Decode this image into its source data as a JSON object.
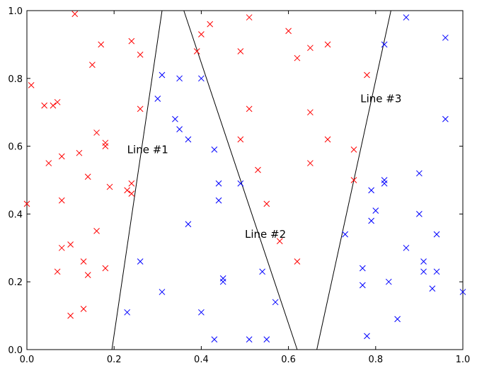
{
  "chart_data": {
    "type": "scatter",
    "title": "",
    "xlabel": "",
    "ylabel": "",
    "xlim": [
      0,
      1
    ],
    "ylim": [
      0,
      1
    ],
    "xticks": [
      "0.0",
      "0.2",
      "0.4",
      "0.6",
      "0.8",
      "1.0"
    ],
    "yticks": [
      "0.0",
      "0.2",
      "0.4",
      "0.6",
      "0.8",
      "1.0"
    ],
    "grid": false,
    "series": [
      {
        "color": "#ff0000",
        "marker": "x",
        "points": [
          [
            0.0,
            0.43
          ],
          [
            0.01,
            0.78
          ],
          [
            0.04,
            0.72
          ],
          [
            0.05,
            0.55
          ],
          [
            0.06,
            0.72
          ],
          [
            0.07,
            0.73
          ],
          [
            0.08,
            0.57
          ],
          [
            0.08,
            0.44
          ],
          [
            0.08,
            0.3
          ],
          [
            0.07,
            0.23
          ],
          [
            0.1,
            0.1
          ],
          [
            0.1,
            0.31
          ],
          [
            0.11,
            0.99
          ],
          [
            0.12,
            0.58
          ],
          [
            0.13,
            0.26
          ],
          [
            0.13,
            0.12
          ],
          [
            0.14,
            0.22
          ],
          [
            0.14,
            0.51
          ],
          [
            0.15,
            0.84
          ],
          [
            0.16,
            0.64
          ],
          [
            0.17,
            0.9
          ],
          [
            0.16,
            0.35
          ],
          [
            0.18,
            0.24
          ],
          [
            0.18,
            0.61
          ],
          [
            0.18,
            0.6
          ],
          [
            0.19,
            0.48
          ],
          [
            0.23,
            0.47
          ],
          [
            0.24,
            0.49
          ],
          [
            0.24,
            0.46
          ],
          [
            0.24,
            0.91
          ],
          [
            0.26,
            0.87
          ],
          [
            0.26,
            0.71
          ],
          [
            0.39,
            0.88
          ],
          [
            0.4,
            0.93
          ],
          [
            0.42,
            0.96
          ],
          [
            0.49,
            0.88
          ],
          [
            0.49,
            0.62
          ],
          [
            0.51,
            0.98
          ],
          [
            0.51,
            0.71
          ],
          [
            0.53,
            0.53
          ],
          [
            0.55,
            0.43
          ],
          [
            0.58,
            0.32
          ],
          [
            0.6,
            0.94
          ],
          [
            0.62,
            0.26
          ],
          [
            0.62,
            0.86
          ],
          [
            0.65,
            0.89
          ],
          [
            0.65,
            0.7
          ],
          [
            0.65,
            0.55
          ],
          [
            0.69,
            0.62
          ],
          [
            0.69,
            0.9
          ],
          [
            0.75,
            0.59
          ],
          [
            0.75,
            0.5
          ],
          [
            0.78,
            0.81
          ]
        ]
      },
      {
        "color": "#0000ff",
        "marker": "x",
        "points": [
          [
            0.23,
            0.11
          ],
          [
            0.26,
            0.26
          ],
          [
            0.3,
            0.74
          ],
          [
            0.31,
            0.81
          ],
          [
            0.31,
            0.17
          ],
          [
            0.34,
            0.68
          ],
          [
            0.35,
            0.8
          ],
          [
            0.35,
            0.65
          ],
          [
            0.37,
            0.62
          ],
          [
            0.37,
            0.37
          ],
          [
            0.4,
            0.8
          ],
          [
            0.4,
            0.11
          ],
          [
            0.43,
            0.59
          ],
          [
            0.43,
            0.03
          ],
          [
            0.44,
            0.49
          ],
          [
            0.44,
            0.44
          ],
          [
            0.45,
            0.21
          ],
          [
            0.45,
            0.2
          ],
          [
            0.49,
            0.49
          ],
          [
            0.51,
            0.03
          ],
          [
            0.54,
            0.23
          ],
          [
            0.55,
            0.03
          ],
          [
            0.57,
            0.14
          ],
          [
            0.73,
            0.34
          ],
          [
            0.77,
            0.24
          ],
          [
            0.77,
            0.19
          ],
          [
            0.78,
            0.04
          ],
          [
            0.79,
            0.47
          ],
          [
            0.79,
            0.38
          ],
          [
            0.8,
            0.41
          ],
          [
            0.82,
            0.5
          ],
          [
            0.82,
            0.49
          ],
          [
            0.82,
            0.9
          ],
          [
            0.83,
            0.2
          ],
          [
            0.85,
            0.09
          ],
          [
            0.87,
            0.3
          ],
          [
            0.87,
            0.98
          ],
          [
            0.9,
            0.52
          ],
          [
            0.9,
            0.4
          ],
          [
            0.91,
            0.26
          ],
          [
            0.91,
            0.23
          ],
          [
            0.93,
            0.18
          ],
          [
            0.94,
            0.34
          ],
          [
            0.94,
            0.23
          ],
          [
            0.96,
            0.68
          ],
          [
            0.96,
            0.92
          ],
          [
            1.0,
            0.17
          ]
        ]
      }
    ],
    "lines": [
      {
        "label": "Line #1",
        "start": [
          0.195,
          0.0
        ],
        "end": [
          0.31,
          1.0
        ],
        "label_at": [
          0.23,
          0.59
        ]
      },
      {
        "label": "Line #2",
        "start": [
          0.36,
          1.0
        ],
        "end": [
          0.62,
          0.0
        ],
        "label_at": [
          0.5,
          0.34
        ]
      },
      {
        "label": "Line #3",
        "start": [
          0.665,
          0.0
        ],
        "end": [
          0.835,
          1.0
        ],
        "label_at": [
          0.765,
          0.74
        ]
      }
    ]
  }
}
